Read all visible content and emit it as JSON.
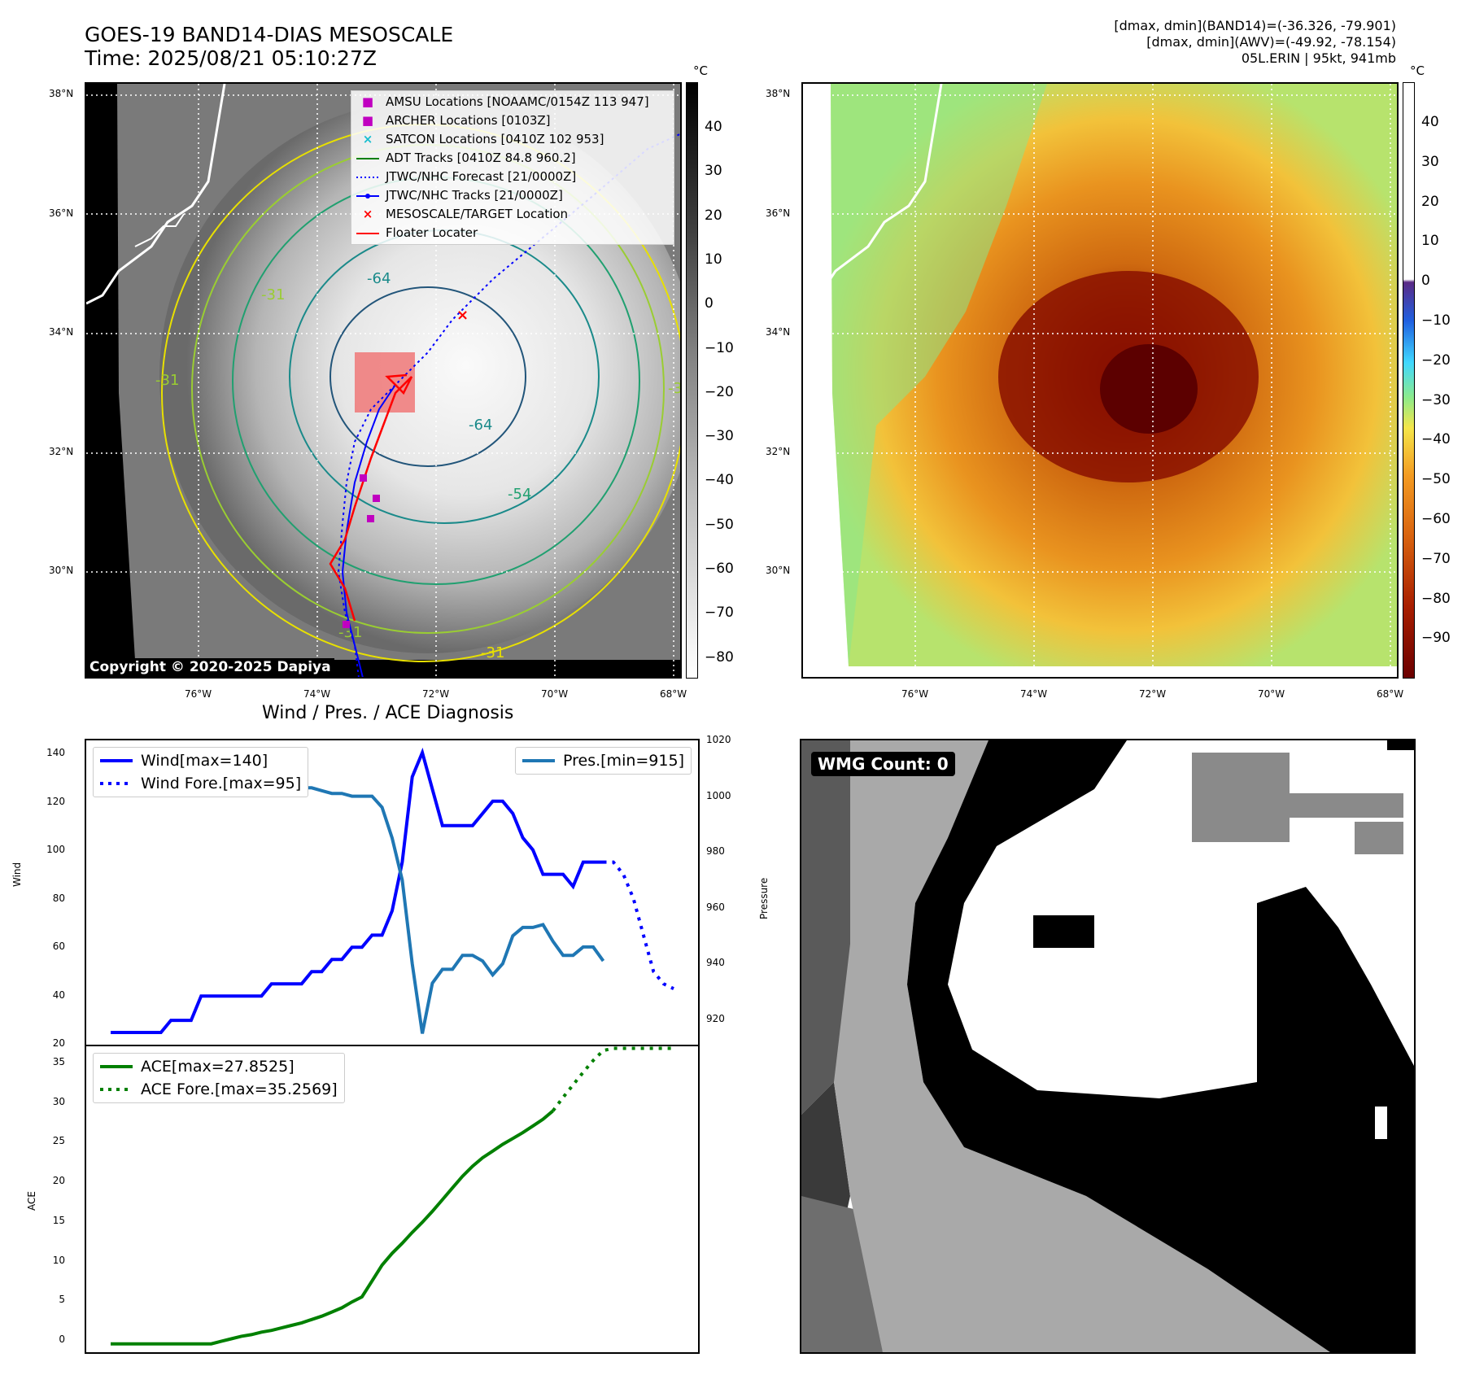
{
  "header": {
    "title_line1": "GOES-19 BAND14-DIAS MESOSCALE",
    "title_line2": "Time: 2025/08/21 05:10:27Z",
    "right_line1": "[dmax, dmin](BAND14)=(-36.326, -79.901)",
    "right_line2": "[dmax, dmin](AWV)=(-49.92, -78.154)",
    "right_line3": "05L.ERIN | 95kt, 941mb"
  },
  "map_axes": {
    "lat_labels": [
      "38°N",
      "36°N",
      "34°N",
      "32°N",
      "30°N"
    ],
    "lon_labels": [
      "76°W",
      "74°W",
      "72°W",
      "70°W",
      "68°W"
    ]
  },
  "left_map": {
    "colorbar_unit": "°C",
    "colorbar_ticks": [
      "40",
      "30",
      "20",
      "10",
      "0",
      "−10",
      "−20",
      "−30",
      "−40",
      "−50",
      "−60",
      "−70",
      "−80"
    ],
    "copyright": "Copyright © 2020-2025 Dapiya",
    "contour_labels": [
      "-64",
      "-64",
      "-54",
      "-31",
      "-31",
      "-31",
      "-31",
      "-31"
    ],
    "legend": [
      {
        "symbol": "square",
        "color": "#c000c0",
        "label": "AMSU Locations [NOAAMC/0154Z 113 947]"
      },
      {
        "symbol": "square",
        "color": "#c000c0",
        "label": "ARCHER Locations [0103Z]"
      },
      {
        "symbol": "x",
        "color": "#17becf",
        "label": "SATCON Locations [0410Z 102 953]"
      },
      {
        "symbol": "line",
        "color": "#008000",
        "label": "ADT Tracks [0410Z 84.8 960.2]"
      },
      {
        "symbol": "dotted",
        "color": "#0000ff",
        "label": "JTWC/NHC Forecast [21/0000Z]"
      },
      {
        "symbol": "line-dot",
        "color": "#0000ff",
        "label": "JTWC/NHC Tracks [21/0000Z]"
      },
      {
        "symbol": "x",
        "color": "#ff0000",
        "label": "MESOSCALE/TARGET Location"
      },
      {
        "symbol": "line",
        "color": "#ff0000",
        "label": "Floater Locater"
      }
    ]
  },
  "right_map": {
    "colorbar_unit": "°C",
    "colorbar_ticks": [
      "40",
      "30",
      "20",
      "10",
      "0",
      "−10",
      "−20",
      "−30",
      "−40",
      "−50",
      "−60",
      "−70",
      "−80",
      "−90"
    ]
  },
  "diagnosis": {
    "title": "Wind / Pres. / ACE Diagnosis",
    "wind_ylabel": "Wind",
    "pres_ylabel": "Pressure",
    "ace_ylabel": "ACE",
    "wind_ticks": [
      "140",
      "120",
      "100",
      "80",
      "60",
      "40",
      "20"
    ],
    "pres_ticks": [
      "1020",
      "1000",
      "980",
      "960",
      "940",
      "920"
    ],
    "ace_ticks": [
      "35",
      "30",
      "25",
      "20",
      "15",
      "10",
      "5",
      "0"
    ],
    "legend_wind": "Wind[max=140]",
    "legend_wind_fore": "Wind Fore.[max=95]",
    "legend_pres": "Pres.[min=915]",
    "legend_ace": "ACE[max=27.8525]",
    "legend_ace_fore": "ACE Fore.[max=35.2569]"
  },
  "wmg": {
    "label": "WMG Count: 0"
  },
  "chart_data": [
    {
      "type": "line",
      "name": "wind",
      "x": [
        0,
        1,
        2,
        3,
        4,
        5,
        6,
        7,
        8,
        9,
        10,
        11,
        12,
        13,
        14,
        15,
        16,
        17,
        18,
        19,
        20,
        21,
        22,
        23,
        24,
        25,
        26,
        27,
        28,
        29,
        30,
        31,
        32,
        33,
        34,
        35,
        36,
        37,
        38,
        39,
        40,
        41,
        42,
        43,
        44,
        45,
        46,
        47,
        48,
        49,
        50,
        51,
        52,
        53,
        54,
        55,
        56
      ],
      "series": [
        {
          "name": "Wind[max=140]",
          "color": "#0000ff",
          "values": [
            25,
            25,
            25,
            25,
            25,
            25,
            30,
            30,
            30,
            40,
            40,
            40,
            40,
            40,
            40,
            40,
            45,
            45,
            45,
            45,
            50,
            50,
            55,
            55,
            60,
            60,
            65,
            65,
            75,
            95,
            130,
            140,
            125,
            110,
            110,
            110,
            110,
            115,
            120,
            120,
            115,
            105,
            100,
            90,
            90,
            90,
            85,
            95,
            95,
            95,
            null,
            null,
            null,
            null,
            null,
            null,
            null
          ]
        },
        {
          "name": "Wind Fore.[max=95]",
          "color": "#0000ff",
          "dashed": true,
          "values": [
            null,
            null,
            null,
            null,
            null,
            null,
            null,
            null,
            null,
            null,
            null,
            null,
            null,
            null,
            null,
            null,
            null,
            null,
            null,
            null,
            null,
            null,
            null,
            null,
            null,
            null,
            null,
            null,
            null,
            null,
            null,
            null,
            null,
            null,
            null,
            null,
            null,
            null,
            null,
            null,
            null,
            null,
            null,
            null,
            null,
            null,
            null,
            null,
            null,
            95,
            95,
            90,
            80,
            65,
            50,
            45,
            43
          ]
        }
      ],
      "ylabel": "Wind",
      "ylim": [
        20,
        145
      ]
    },
    {
      "type": "line",
      "name": "pressure",
      "x": [
        0,
        1,
        2,
        3,
        4,
        5,
        6,
        7,
        8,
        9,
        10,
        11,
        12,
        13,
        14,
        15,
        16,
        17,
        18,
        19,
        20,
        21,
        22,
        23,
        24,
        25,
        26,
        27,
        28,
        29,
        30,
        31,
        32,
        33,
        34,
        35,
        36,
        37,
        38,
        39,
        40,
        41,
        42,
        43,
        44,
        45,
        46,
        47,
        48,
        49
      ],
      "series": [
        {
          "name": "Pres.[min=915]",
          "color": "#1f77b4",
          "values": [
            1014,
            1014,
            1009,
            1008,
            1006,
            1006,
            1006,
            1005,
            1005,
            1004,
            1004,
            1004,
            1004,
            1005,
            1005,
            1004,
            1003,
            1003,
            1003,
            1003,
            1003,
            1002,
            1001,
            1001,
            1000,
            1000,
            1000,
            996,
            985,
            970,
            940,
            915,
            933,
            938,
            938,
            943,
            943,
            941,
            936,
            940,
            950,
            953,
            953,
            954,
            948,
            943,
            943,
            946,
            946,
            941
          ],
          "axis": "right"
        }
      ],
      "ylabel": "Pressure",
      "ylim": [
        911,
        1020
      ]
    },
    {
      "type": "line",
      "name": "ace",
      "x": [
        0,
        1,
        2,
        3,
        4,
        5,
        6,
        7,
        8,
        9,
        10,
        11,
        12,
        13,
        14,
        15,
        16,
        17,
        18,
        19,
        20,
        21,
        22,
        23,
        24,
        25,
        26,
        27,
        28,
        29,
        30,
        31,
        32,
        33,
        34,
        35,
        36,
        37,
        38,
        39,
        40,
        41,
        42,
        43,
        44,
        45,
        46,
        47,
        48,
        49,
        50,
        51,
        52,
        53,
        54,
        55,
        56
      ],
      "series": [
        {
          "name": "ACE[max=27.8525]",
          "color": "#008000",
          "values": [
            0,
            0,
            0,
            0,
            0,
            0,
            0,
            0,
            0,
            0,
            0,
            0.3,
            0.6,
            0.9,
            1.1,
            1.4,
            1.6,
            1.9,
            2.2,
            2.5,
            2.9,
            3.3,
            3.8,
            4.3,
            5.0,
            5.6,
            7.5,
            9.4,
            10.8,
            12.0,
            13.3,
            14.5,
            15.8,
            17.2,
            18.6,
            20.0,
            21.2,
            22.2,
            23.0,
            23.8,
            24.5,
            25.2,
            26.0,
            26.8,
            27.8,
            null,
            null,
            null,
            null,
            null,
            null,
            null,
            null,
            null,
            null,
            null,
            null
          ]
        },
        {
          "name": "ACE Fore.[max=35.2569]",
          "color": "#008000",
          "dashed": true,
          "values": [
            null,
            null,
            null,
            null,
            null,
            null,
            null,
            null,
            null,
            null,
            null,
            null,
            null,
            null,
            null,
            null,
            null,
            null,
            null,
            null,
            null,
            null,
            null,
            null,
            null,
            null,
            null,
            null,
            null,
            null,
            null,
            null,
            null,
            null,
            null,
            null,
            null,
            null,
            null,
            null,
            null,
            null,
            null,
            null,
            27.8,
            29.4,
            30.9,
            32.4,
            33.8,
            35.0,
            35.26,
            35.26,
            35.26,
            35.26,
            35.26,
            35.26,
            35.26
          ]
        }
      ],
      "ylabel": "ACE",
      "ylim": [
        -1,
        35.5
      ]
    }
  ]
}
